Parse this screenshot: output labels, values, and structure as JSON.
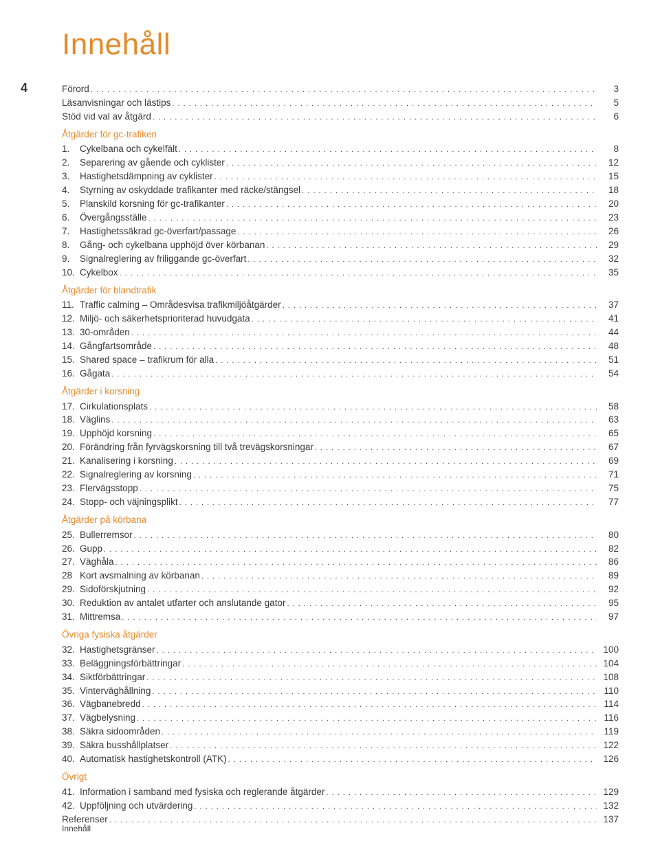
{
  "title": "Innehåll",
  "page_number": "4",
  "footer": "Innehåll",
  "colors": {
    "accent": "#e38b2a",
    "text": "#3a3a3a",
    "background": "#ffffff"
  },
  "typography": {
    "title_fontsize_pt": 33,
    "body_fontsize_pt": 10,
    "font_family": "Helvetica Neue, Arial, sans-serif"
  },
  "toc": [
    {
      "type": "entry",
      "num": "",
      "label": "Förord",
      "page": "3"
    },
    {
      "type": "entry",
      "num": "",
      "label": "Läsanvisningar och lästips",
      "page": "5"
    },
    {
      "type": "entry",
      "num": "",
      "label": "Stöd vid val av åtgärd",
      "page": "6"
    },
    {
      "type": "section",
      "label": "Åtgärder för gc-trafiken"
    },
    {
      "type": "entry",
      "num": "1.",
      "label": "Cykelbana och cykelfält",
      "page": "8"
    },
    {
      "type": "entry",
      "num": "2.",
      "label": "Separering av gående och cyklister",
      "page": "12"
    },
    {
      "type": "entry",
      "num": "3.",
      "label": "Hastighetsdämpning av cyklister",
      "page": "15"
    },
    {
      "type": "entry",
      "num": "4.",
      "label": "Styrning av oskyddade trafikanter med räcke/stängsel",
      "page": "18"
    },
    {
      "type": "entry",
      "num": "5.",
      "label": "Planskild korsning för gc-trafikanter",
      "page": "20"
    },
    {
      "type": "entry",
      "num": "6.",
      "label": "Övergångsställe",
      "page": "23"
    },
    {
      "type": "entry",
      "num": "7.",
      "label": "Hastighetssäkrad gc-överfart/passage",
      "page": "26"
    },
    {
      "type": "entry",
      "num": "8.",
      "label": "Gång- och cykelbana upphöjd över körbanan",
      "page": "29"
    },
    {
      "type": "entry",
      "num": "9.",
      "label": "Signalreglering av friliggande gc-överfart",
      "page": "32"
    },
    {
      "type": "entry",
      "num": "10.",
      "label": "Cykelbox",
      "page": "35"
    },
    {
      "type": "section",
      "label": "Åtgärder för blandtrafik"
    },
    {
      "type": "entry",
      "num": "11.",
      "label": "Traffic calming – Områdesvisa trafikmiljöåtgärder",
      "page": "37"
    },
    {
      "type": "entry",
      "num": "12.",
      "label": "Miljö- och säkerhetsprioriterad huvudgata",
      "page": "41"
    },
    {
      "type": "entry",
      "num": "13.",
      "label": "30-områden",
      "page": "44"
    },
    {
      "type": "entry",
      "num": "14.",
      "label": "Gångfartsområde",
      "page": "48"
    },
    {
      "type": "entry",
      "num": "15.",
      "label": "Shared space – trafikrum för alla",
      "page": "51"
    },
    {
      "type": "entry",
      "num": "16.",
      "label": "Gågata",
      "page": "54"
    },
    {
      "type": "section",
      "label": "Åtgärder i korsning"
    },
    {
      "type": "entry",
      "num": "17.",
      "label": "Cirkulationsplats",
      "page": "58"
    },
    {
      "type": "entry",
      "num": "18.",
      "label": "Väglins",
      "page": "63"
    },
    {
      "type": "entry",
      "num": "19.",
      "label": "Upphöjd korsning",
      "page": "65"
    },
    {
      "type": "entry",
      "num": "20.",
      "label": "Förändring från fyrvägskorsning till två trevägskorsningar",
      "page": "67"
    },
    {
      "type": "entry",
      "num": "21.",
      "label": "Kanalisering i korsning",
      "page": "69"
    },
    {
      "type": "entry",
      "num": "22.",
      "label": "Signalreglering av korsning",
      "page": "71"
    },
    {
      "type": "entry",
      "num": "23.",
      "label": "Flervägsstopp",
      "page": "75"
    },
    {
      "type": "entry",
      "num": "24.",
      "label": "Stopp- och väjningsplikt",
      "page": "77"
    },
    {
      "type": "section",
      "label": "Åtgärder på körbana"
    },
    {
      "type": "entry",
      "num": "25.",
      "label": "Bullerremsor",
      "page": "80"
    },
    {
      "type": "entry",
      "num": "26.",
      "label": "Gupp",
      "page": "82"
    },
    {
      "type": "entry",
      "num": "27.",
      "label": "Väghåla",
      "page": "86"
    },
    {
      "type": "entry",
      "num": "28",
      "label": "Kort avsmalning av körbanan",
      "page": "89"
    },
    {
      "type": "entry",
      "num": "29.",
      "label": "Sidoförskjutning",
      "page": "92"
    },
    {
      "type": "entry",
      "num": "30.",
      "label": "Reduktion av antalet utfarter och anslutande gator",
      "page": "95"
    },
    {
      "type": "entry",
      "num": "31.",
      "label": "Mittremsa",
      "page": "97"
    },
    {
      "type": "section",
      "label": "Övriga fysiska åtgärder"
    },
    {
      "type": "entry",
      "num": "32.",
      "label": "Hastighetsgränser",
      "page": "100"
    },
    {
      "type": "entry",
      "num": "33.",
      "label": "Beläggningsförbättringar",
      "page": "104"
    },
    {
      "type": "entry",
      "num": "34.",
      "label": "Siktförbättringar",
      "page": "108"
    },
    {
      "type": "entry",
      "num": "35.",
      "label": "Vinterväghållning",
      "page": "110"
    },
    {
      "type": "entry",
      "num": "36.",
      "label": "Vägbanebredd",
      "page": "114"
    },
    {
      "type": "entry",
      "num": "37.",
      "label": "Vägbelysning",
      "page": "116"
    },
    {
      "type": "entry",
      "num": "38.",
      "label": "Säkra sidoområden",
      "page": "119"
    },
    {
      "type": "entry",
      "num": "39.",
      "label": "Säkra busshållplatser",
      "page": "122"
    },
    {
      "type": "entry",
      "num": "40.",
      "label": "Automatisk hastighetskontroll (ATK)",
      "page": "126"
    },
    {
      "type": "section",
      "label": "Övrigt"
    },
    {
      "type": "entry",
      "num": "41.",
      "label": "Information i samband med fysiska och reglerande åtgärder",
      "page": "129"
    },
    {
      "type": "entry",
      "num": "42.",
      "label": "Uppföljning och utvärdering",
      "page": "132"
    },
    {
      "type": "entry",
      "num": "",
      "label": "Referenser",
      "page": "137"
    }
  ]
}
